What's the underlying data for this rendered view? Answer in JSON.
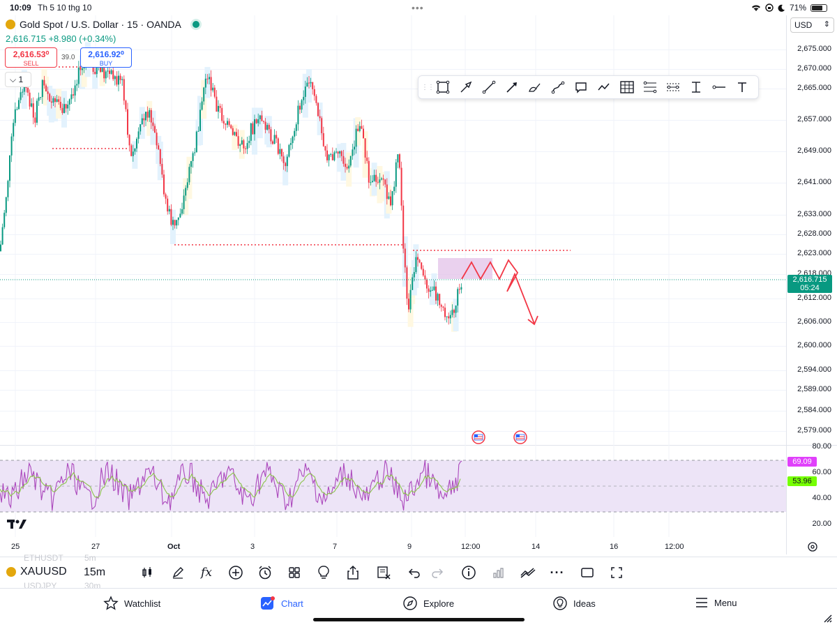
{
  "status_bar": {
    "time": "10:09",
    "date": "Th 5 10 thg 10",
    "battery": "71%"
  },
  "symbol": {
    "title": "Gold Spot / U.S. Dollar · 15 · OANDA",
    "price": "2,616.715",
    "change": "+8.980 (+0.34%)"
  },
  "trade": {
    "sell_price": "2,616.53⁰",
    "sell_label": "SELL",
    "spread": "39.0",
    "buy_price": "2,616.92⁰",
    "buy_label": "BUY"
  },
  "interval_button": "1",
  "currency": "USD",
  "price_axis": [
    "2,675.000",
    "2,670.000",
    "2,665.000",
    "2,657.000",
    "2,649.000",
    "2,641.000",
    "2,633.000",
    "2,628.000",
    "2,623.000",
    "2,618.000",
    "2,612.000",
    "2,606.000",
    "2,600.000",
    "2,594.000",
    "2,589.000",
    "2,584.000",
    "2,579.000"
  ],
  "current_price_tag": {
    "price": "2,616.715",
    "countdown": "05:24",
    "color": "#089981"
  },
  "rsi_axis": [
    "80.00",
    "60.00",
    "40.00",
    "20.00"
  ],
  "rsi_tags": {
    "rsi": "69.09",
    "rsi_color": "#e040fb",
    "ma": "53.96",
    "ma_color": "#76ff03"
  },
  "time_axis": [
    "25",
    "27",
    "Oct",
    "3",
    "7",
    "9",
    "12:00",
    "14",
    "16",
    "12:00"
  ],
  "drawing_tools": [
    "rectangle-icon",
    "arrow-icon",
    "trend-line-icon",
    "arrow-marker-icon",
    "brush-icon",
    "path-icon",
    "callout-icon",
    "zigzag-icon",
    "table-icon",
    "fib-icon",
    "parallel-channel-icon",
    "date-range-icon",
    "horizontal-ray-icon",
    "text-icon"
  ],
  "bottom_toolbar": {
    "symbol": "XAUUSD",
    "interval": "15m",
    "ghost_above_symbol": "ETHUSDT",
    "ghost_above_interval": "5m",
    "ghost_below_symbol": "USDJPY",
    "ghost_below_interval": "30m"
  },
  "tabs": [
    {
      "label": "Watchlist",
      "icon": "star-icon"
    },
    {
      "label": "Chart",
      "icon": "chart-icon"
    },
    {
      "label": "Explore",
      "icon": "compass-icon"
    },
    {
      "label": "Ideas",
      "icon": "lightbulb-icon"
    },
    {
      "label": "Menu",
      "icon": "hamburger-icon"
    }
  ],
  "colors": {
    "up": "#089981",
    "down": "#f23645",
    "accent": "#2962ff",
    "rsi_band": "#e9def5"
  }
}
